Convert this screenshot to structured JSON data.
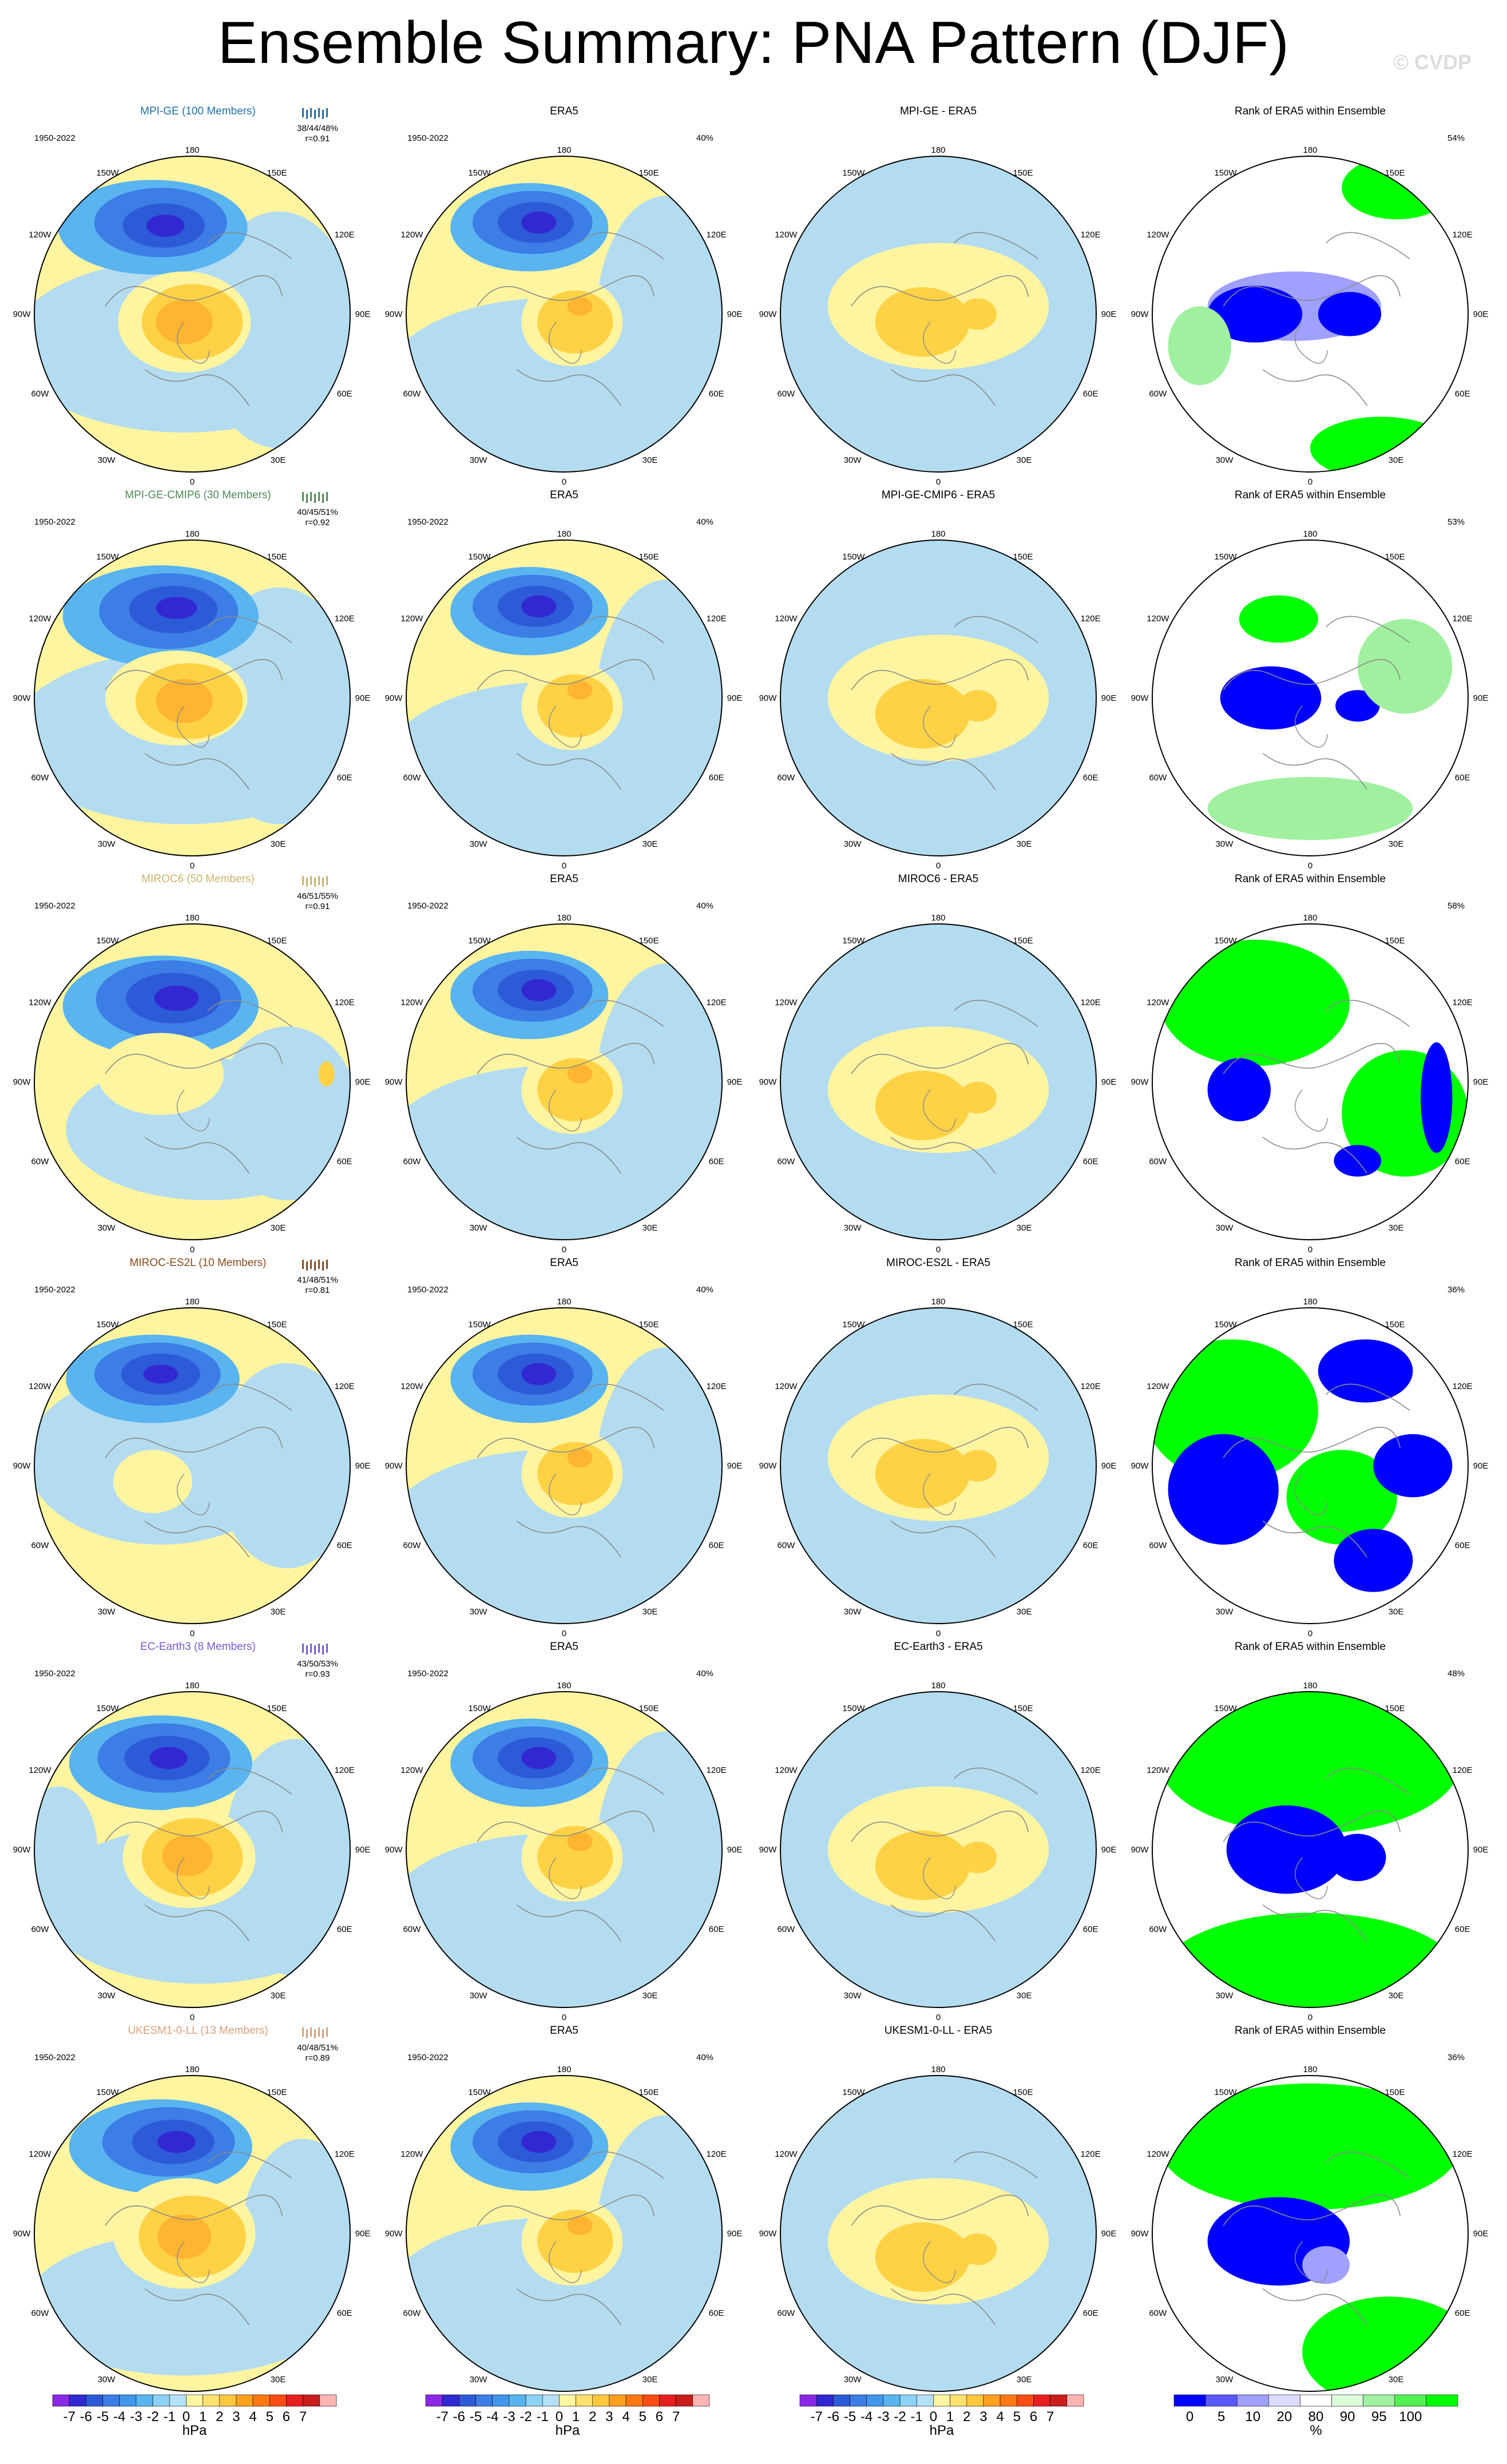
{
  "title": "Ensemble Summary: PNA Pattern (DJF)",
  "watermark": "© CVDP",
  "period": "1950-2022",
  "era5_period": "1950-2022",
  "era5_pct": "40%",
  "diff_suffix": " - ERA5",
  "col_titles": {
    "era5": "ERA5",
    "rank": "Rank of ERA5 within Ensemble"
  },
  "lon_labels": {
    "top": "180",
    "tl": "150W",
    "tr": "150E",
    "ul": "120W",
    "ur": "120E",
    "ml": "90W",
    "mr": "90E",
    "ll": "60W",
    "lr": "60E",
    "bl": "30W",
    "br": "30E",
    "bottom": "0"
  },
  "models": [
    {
      "name": "MPI-GE (100 Members)",
      "short": "MPI-GE",
      "color": "#1f6fa8",
      "pct": "38/44/48%",
      "r": "r=0.91",
      "rank_pct": "54%",
      "pattern": "mpi"
    },
    {
      "name": "MPI-GE-CMIP6 (30 Members)",
      "short": "MPI-GE-CMIP6",
      "color": "#4f8a5a",
      "pct": "40/45/51%",
      "r": "r=0.92",
      "rank_pct": "53%",
      "pattern": "mpi6"
    },
    {
      "name": "MIROC6 (50 Members)",
      "short": "MIROC6",
      "color": "#c8b46a",
      "pct": "46/51/55%",
      "r": "r=0.91",
      "rank_pct": "58%",
      "pattern": "miroc6"
    },
    {
      "name": "MIROC-ES2L (10 Members)",
      "short": "MIROC-ES2L",
      "color": "#8a4a1e",
      "pct": "41/48/51%",
      "r": "r=0.81",
      "rank_pct": "36%",
      "pattern": "miroces2l"
    },
    {
      "name": "EC-Earth3 (8 Members)",
      "short": "EC-Earth3",
      "color": "#7a5ad0",
      "pct": "43/50/53%",
      "r": "r=0.93",
      "rank_pct": "48%",
      "pattern": "ecearth"
    },
    {
      "name": "UKESM1-0-LL (13 Members)",
      "short": "UKESM1-0-LL",
      "color": "#d9a07a",
      "pct": "40/48/51%",
      "r": "r=0.89",
      "rank_pct": "36%",
      "pattern": "ukesm"
    }
  ],
  "colorbar_hpa": {
    "labels": [
      "-7",
      "-6",
      "-5",
      "-4",
      "-3",
      "-2",
      "-1",
      "0",
      "1",
      "2",
      "3",
      "4",
      "5",
      "6",
      "7"
    ],
    "unit": "hPa",
    "colors": [
      "#8c28e6",
      "#3228d2",
      "#2d5ad7",
      "#3c7de6",
      "#4196eb",
      "#5ab4f0",
      "#8cd2f5",
      "#b4e1f5",
      "#fff5a0",
      "#ffe16e",
      "#ffc83c",
      "#ffa01e",
      "#ff7814",
      "#ff4b14",
      "#e61e1e",
      "#c81e1e",
      "#ffb4b4"
    ]
  },
  "colorbar_pct": {
    "labels": [
      "0",
      "5",
      "10",
      "20",
      "80",
      "90",
      "95",
      "100"
    ],
    "unit": "%",
    "colors": [
      "#0000ff",
      "#5a5aff",
      "#a0a0ff",
      "#dcdcff",
      "#ffffff",
      "#dcffdc",
      "#a0f0a0",
      "#50f050",
      "#00ff00"
    ]
  },
  "palette": {
    "neg_base": "#b4dcf0",
    "neg1": "#5ab4f0",
    "neg2": "#3c7de6",
    "neg3": "#2d5ad7",
    "neg4": "#3228d2",
    "pos_base": "#fff5a0",
    "pos1": "#ffd246",
    "pos2": "#ffb432",
    "rank_low": "#0000ff",
    "rank_mid": "#a0a0ff",
    "rank_high": "#00ff00",
    "rank_hi2": "#a0f0a0"
  }
}
